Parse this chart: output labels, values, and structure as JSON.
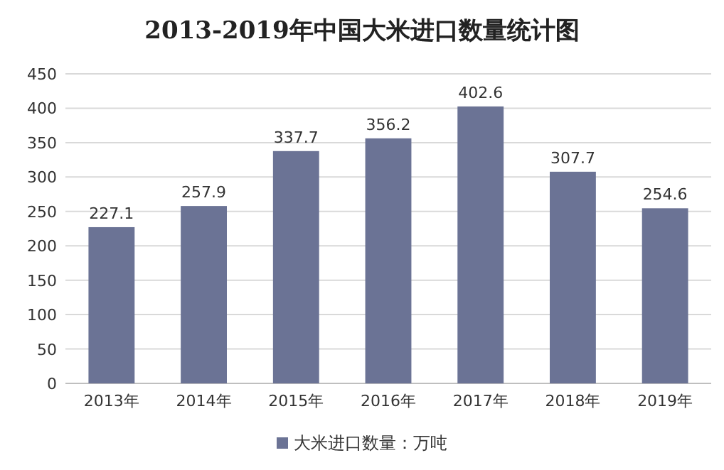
{
  "chart_data": {
    "type": "bar",
    "title": "2013-2019年中国大米进口数量统计图",
    "categories": [
      "2013年",
      "2014年",
      "2015年",
      "2016年",
      "2017年",
      "2018年",
      "2019年"
    ],
    "series": [
      {
        "name": "大米进口数量：万吨",
        "color": "#6b7395",
        "values": [
          227.1,
          257.9,
          337.7,
          356.2,
          402.6,
          307.7,
          254.6
        ]
      }
    ],
    "ylim": [
      0,
      450
    ],
    "yticks": [
      0,
      50,
      100,
      150,
      200,
      250,
      300,
      350,
      400,
      450
    ],
    "grid": "y",
    "data_labels": true,
    "legend": "bottom"
  }
}
